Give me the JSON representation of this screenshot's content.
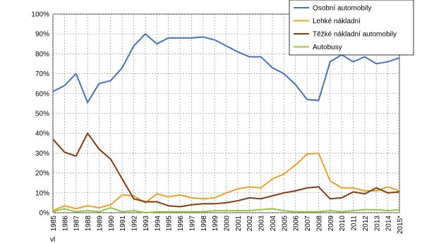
{
  "chart_data": {
    "type": "line",
    "categories": [
      "1985",
      "1986",
      "1987",
      "1988",
      "1989",
      "1990",
      "1991",
      "1992",
      "1993",
      "1994",
      "1995",
      "1996",
      "1997",
      "1998",
      "1999",
      "2000",
      "2001",
      "2002",
      "2003",
      "2004",
      "2005",
      "2006",
      "2007",
      "2008",
      "2009",
      "2010",
      "2011",
      "2012",
      "2013",
      "2014",
      "2015*"
    ],
    "series": [
      {
        "name": "Osobní automobily",
        "color": "#4472c4",
        "values": [
          61,
          64,
          70,
          55.5,
          65,
          66.5,
          73,
          84,
          90,
          85,
          88,
          88,
          88,
          88.5,
          87,
          84,
          81,
          78.5,
          78.5,
          73,
          70,
          64.5,
          57,
          56.5,
          76,
          79.5,
          76,
          78.5,
          75,
          76,
          78
        ]
      },
      {
        "name": "Lehké nákladní",
        "color": "#f0a020",
        "values": [
          1,
          3.5,
          2,
          3.5,
          2.5,
          4,
          9,
          8.5,
          5,
          9.5,
          8,
          9,
          7.5,
          7,
          7.5,
          10,
          12,
          13,
          12.5,
          17,
          19.5,
          24,
          29.5,
          30,
          16,
          12.5,
          12.5,
          11,
          11,
          13,
          11
        ]
      },
      {
        "name": "Těžké nákladní automobily",
        "color": "#843c0c",
        "values": [
          37,
          30.5,
          28.5,
          40,
          32,
          27,
          17,
          7,
          5.5,
          5.5,
          3.5,
          3,
          4,
          4.5,
          4.5,
          5,
          6,
          7.5,
          7,
          8.5,
          10,
          11,
          12.5,
          13,
          7,
          7.5,
          10.5,
          9.5,
          12.5,
          10,
          10.5
        ]
      },
      {
        "name": "Autobusy",
        "color": "#92c83e",
        "values": [
          0.5,
          2,
          0.5,
          1,
          0.5,
          2.5,
          0.5,
          1,
          0,
          0.5,
          0.5,
          0.5,
          0.5,
          0.5,
          1,
          1,
          1,
          1,
          1.5,
          2,
          1,
          0.5,
          0.5,
          0.5,
          1,
          0.5,
          1,
          1.5,
          1.5,
          1,
          1.5
        ]
      }
    ],
    "ylim": [
      0,
      100
    ],
    "yticks": [
      {
        "value": 0,
        "label": "0%"
      },
      {
        "value": 10,
        "label": "10%"
      },
      {
        "value": 20,
        "label": "20%"
      },
      {
        "value": 30,
        "label": "30%"
      },
      {
        "value": 40,
        "label": "40%"
      },
      {
        "value": 50,
        "label": "50%"
      },
      {
        "value": 60,
        "label": "60%"
      },
      {
        "value": 70,
        "label": "70%"
      },
      {
        "value": 80,
        "label": "80%"
      },
      {
        "value": 90,
        "label": "90%"
      },
      {
        "value": 100,
        "label": "100%"
      }
    ],
    "grid": true,
    "legend": "top-right",
    "footnote": "vl"
  }
}
